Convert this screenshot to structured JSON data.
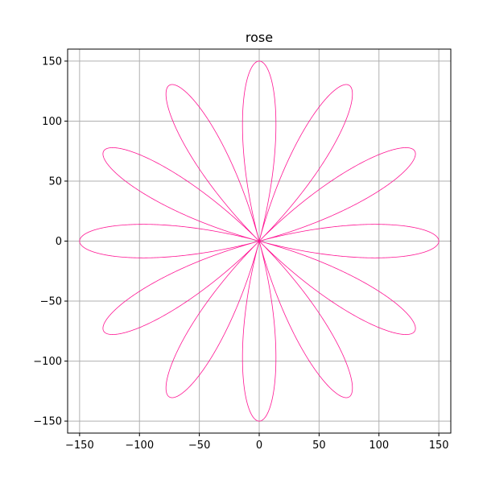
{
  "chart_data": {
    "type": "line",
    "title": "rose",
    "xlabel": "",
    "ylabel": "",
    "xlim": [
      -160,
      160
    ],
    "ylim": [
      -160,
      160
    ],
    "xticks": [
      -150,
      -100,
      -50,
      0,
      50,
      100,
      150
    ],
    "yticks": [
      -150,
      -100,
      -50,
      0,
      50,
      100,
      150
    ],
    "xtick_labels": [
      "−150",
      "−100",
      "−50",
      "0",
      "50",
      "100",
      "150"
    ],
    "ytick_labels": [
      "−150",
      "−100",
      "−50",
      "0",
      "50",
      "100",
      "150"
    ],
    "grid": true,
    "series": [
      {
        "curve": "rose r = a·cos(k·θ)",
        "amplitude": 150,
        "k": 6,
        "petals": 12,
        "theta_range": [
          0,
          6.283185307179586
        ],
        "color": "#ff1493"
      }
    ]
  }
}
